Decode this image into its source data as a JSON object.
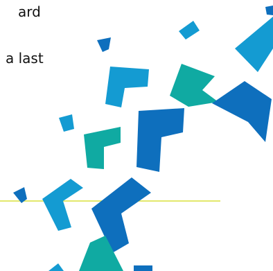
{
  "text": {
    "line1": "ard",
    "line2": "a last"
  },
  "colors": {
    "light_blue": "#149bd2",
    "dark_blue": "#0e6fbd",
    "teal": "#10aaa2",
    "divider": "#e2e86c",
    "text": "#111111"
  },
  "decoration": {
    "shape": "chevron-arrow-cluster"
  }
}
